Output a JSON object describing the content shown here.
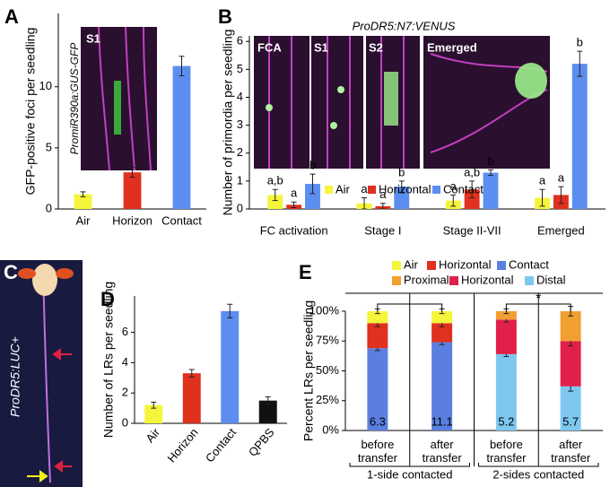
{
  "panel_labels": [
    "A",
    "B",
    "C",
    "D",
    "E"
  ],
  "image_labels": {
    "a_stage": "S1",
    "a_construct": "PromiR390a:GUS-GFP",
    "b_stages": [
      "FCA",
      "S1",
      "S2",
      "Emerged"
    ],
    "c_construct": "ProDR5:LUC+"
  },
  "chart_data": [
    {
      "type": "bar",
      "y_label": "GFP-positive foci per seedling",
      "categories": [
        "Air",
        "Horizon",
        "Contact"
      ],
      "values": [
        1.2,
        3.0,
        11.7
      ],
      "errors": [
        0.2,
        0.4,
        0.8
      ],
      "colors": [
        "#f5f53c",
        "#e0301e",
        "#5b8ef0"
      ],
      "ylim": [
        0,
        16
      ],
      "yticks": [
        0,
        5,
        10
      ]
    },
    {
      "type": "bar",
      "title": "ProDR5:N7:VENUS",
      "y_label": "Number of primordia per seedling",
      "categories": [
        "FC activation",
        "Stage I",
        "Stage II-VII",
        "Emerged"
      ],
      "series": [
        {
          "name": "Air",
          "color": "#f5f53c",
          "values": [
            0.5,
            0.2,
            0.3,
            0.4
          ],
          "errors": [
            0.2,
            0.2,
            0.2,
            0.3
          ],
          "letters": [
            "a,b",
            "a",
            "a",
            "a"
          ]
        },
        {
          "name": "Horizontal",
          "color": "#e0301e",
          "values": [
            0.15,
            0.1,
            0.7,
            0.5
          ],
          "errors": [
            0.1,
            0.1,
            0.3,
            0.3
          ],
          "letters": [
            "a",
            "a",
            "a,b",
            "a"
          ]
        },
        {
          "name": "Contact",
          "color": "#5b8ef0",
          "values": [
            0.9,
            0.8,
            1.3,
            5.2
          ],
          "errors": [
            0.35,
            0.2,
            0.1,
            0.45
          ],
          "letters": [
            "b",
            "b",
            "b",
            "b"
          ]
        }
      ],
      "ylim": [
        0,
        6.2
      ],
      "yticks": [
        0,
        1,
        2,
        3,
        4,
        5,
        6
      ]
    },
    {
      "type": "bar",
      "y_label": "Number of LRs per seedling",
      "categories": [
        "Air",
        "Horizon",
        "Contact",
        "QPBS"
      ],
      "values": [
        1.2,
        3.3,
        7.4,
        1.5
      ],
      "errors": [
        0.2,
        0.25,
        0.45,
        0.25
      ],
      "colors": [
        "#f5f53c",
        "#e0301e",
        "#5b8ef0",
        "#111111"
      ],
      "ylim": [
        0,
        8.4
      ],
      "yticks": [
        0,
        2,
        4,
        6
      ]
    },
    {
      "type": "stacked_bar",
      "y_label": "Percent LRs per seedling",
      "categories": [
        "before transfer",
        "after transfer",
        "before transfer",
        "after transfer"
      ],
      "groups": [
        "1-side contacted",
        "2-sides contacted"
      ],
      "series": [
        {
          "name": "Air",
          "color": "#f5f53c",
          "values": [
            10,
            10,
            null,
            null
          ],
          "errors": [
            2,
            2,
            null,
            null
          ]
        },
        {
          "name": "Horizontal",
          "color": "#e0301e",
          "values": [
            21,
            16,
            null,
            null
          ],
          "errors": [
            3,
            3,
            null,
            null
          ]
        },
        {
          "name": "Contact",
          "color": "#5b7fe0",
          "values": [
            69,
            74,
            null,
            null
          ],
          "errors": [
            2,
            2,
            null,
            null
          ]
        },
        {
          "name": "Proximal",
          "color": "#f0a030",
          "values": [
            null,
            null,
            7,
            25
          ],
          "errors": [
            null,
            null,
            2,
            4
          ]
        },
        {
          "name": "Horizontal",
          "color": "#e0204a",
          "values": [
            null,
            null,
            29,
            38
          ],
          "errors": [
            null,
            null,
            2,
            4
          ]
        },
        {
          "name": "Distal",
          "color": "#7ec8f0",
          "values": [
            null,
            null,
            64,
            37
          ],
          "errors": [
            null,
            null,
            2,
            4
          ]
        }
      ],
      "bar_numbers": [
        6.3,
        11.1,
        5.2,
        5.7
      ],
      "annotation": "*",
      "ylim": [
        0,
        100
      ],
      "yticks": [
        {
          "value": 0,
          "label": "0%"
        },
        {
          "value": 25,
          "label": "25%"
        },
        {
          "value": 50,
          "label": "50%"
        },
        {
          "value": 75,
          "label": "75%"
        },
        {
          "value": 100,
          "label": "100%"
        }
      ]
    }
  ]
}
